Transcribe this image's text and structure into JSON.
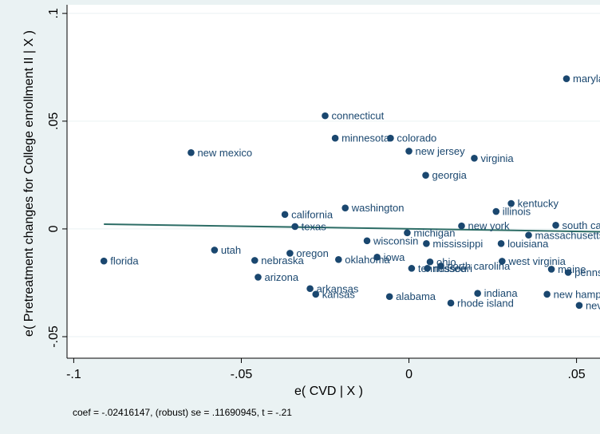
{
  "chart_data": {
    "type": "scatter",
    "xlabel": "e( CVD | X )",
    "ylabel": "e( Pretreatment changes for College enrollment II | X )",
    "xlim": [
      -0.102,
      0.057
    ],
    "ylim": [
      -0.06,
      0.104
    ],
    "xticks": [
      {
        "v": -0.1,
        "label": "-.1"
      },
      {
        "v": -0.05,
        "label": "-.05"
      },
      {
        "v": 0,
        "label": "0"
      },
      {
        "v": 0.05,
        "label": ".05"
      }
    ],
    "yticks": [
      {
        "v": -0.05,
        "label": "-.05"
      },
      {
        "v": 0,
        "label": "0"
      },
      {
        "v": 0.05,
        "label": ".05"
      },
      {
        "v": 0.1,
        "label": ".1"
      }
    ],
    "grid": true,
    "colors": {
      "plot_bg": "#ffffff",
      "outer_bg": "#eaf2f3",
      "point": "#1a476f",
      "label": "#1a476f",
      "fit_line": "#2d6d66",
      "grid": "#eaf2f3"
    },
    "note": "coef = -.02416147, (robust) se = .11690945, t = -.21",
    "fit_line": {
      "x": [
        -0.091,
        0.057
      ],
      "y": [
        0.0022,
        -0.0013
      ]
    },
    "points": [
      {
        "label": "maryland",
        "x": 0.047,
        "y": 0.0697
      },
      {
        "label": "connecticut",
        "x": -0.025,
        "y": 0.0525
      },
      {
        "label": "minnesota",
        "x": -0.022,
        "y": 0.0421
      },
      {
        "label": "colorado",
        "x": -0.0055,
        "y": 0.0421
      },
      {
        "label": "new mexico",
        "x": -0.065,
        "y": 0.0354
      },
      {
        "label": "new jersey",
        "x": 0.0,
        "y": 0.0361
      },
      {
        "label": "virginia",
        "x": 0.0195,
        "y": 0.0328
      },
      {
        "label": "georgia",
        "x": 0.005,
        "y": 0.0249
      },
      {
        "label": "washington",
        "x": -0.019,
        "y": 0.0097
      },
      {
        "label": "kentucky",
        "x": 0.0305,
        "y": 0.0118
      },
      {
        "label": "illinois",
        "x": 0.026,
        "y": 0.0081
      },
      {
        "label": "california",
        "x": -0.037,
        "y": 0.0067
      },
      {
        "label": "texas",
        "x": -0.034,
        "y": 0.0011
      },
      {
        "label": "new york",
        "x": 0.0157,
        "y": 0.0014
      },
      {
        "label": "south carolina",
        "x": 0.0438,
        "y": 0.0017
      },
      {
        "label": "michigan",
        "x": -0.0005,
        "y": -0.0018
      },
      {
        "label": "massachusetts",
        "x": 0.0357,
        "y": -0.0029
      },
      {
        "label": "wisconsin",
        "x": -0.0125,
        "y": -0.0055
      },
      {
        "label": "mississippi",
        "x": 0.0052,
        "y": -0.0068
      },
      {
        "label": "louisiana",
        "x": 0.0275,
        "y": -0.0068
      },
      {
        "label": "utah",
        "x": -0.058,
        "y": -0.0098
      },
      {
        "label": "oregon",
        "x": -0.0355,
        "y": -0.0113
      },
      {
        "label": "iowa",
        "x": -0.0095,
        "y": -0.0131
      },
      {
        "label": "oklahoma",
        "x": -0.021,
        "y": -0.0142
      },
      {
        "label": "nebraska",
        "x": -0.046,
        "y": -0.0146
      },
      {
        "label": "florida",
        "x": -0.091,
        "y": -0.0149
      },
      {
        "label": "ohio",
        "x": 0.0063,
        "y": -0.0153
      },
      {
        "label": "west virginia",
        "x": 0.0278,
        "y": -0.015
      },
      {
        "label": "north carolina",
        "x": 0.0095,
        "y": -0.0172
      },
      {
        "label": "tennessee",
        "x": 0.0008,
        "y": -0.0183
      },
      {
        "label": "missouri",
        "x": 0.0055,
        "y": -0.0183
      },
      {
        "label": "maine",
        "x": 0.0425,
        "y": -0.0187
      },
      {
        "label": "pennsylvania",
        "x": 0.0475,
        "y": -0.0202
      },
      {
        "label": "arizona",
        "x": -0.045,
        "y": -0.0224
      },
      {
        "label": "arkansas",
        "x": -0.0295,
        "y": -0.0277
      },
      {
        "label": "kansas",
        "x": -0.0278,
        "y": -0.0303
      },
      {
        "label": "alabama",
        "x": -0.0058,
        "y": -0.0314
      },
      {
        "label": "indiana",
        "x": 0.0205,
        "y": -0.0299
      },
      {
        "label": "new hampshire",
        "x": 0.0412,
        "y": -0.0303
      },
      {
        "label": "rhode island",
        "x": 0.0125,
        "y": -0.0344
      },
      {
        "label": "nevada",
        "x": 0.0508,
        "y": -0.0355
      }
    ]
  }
}
